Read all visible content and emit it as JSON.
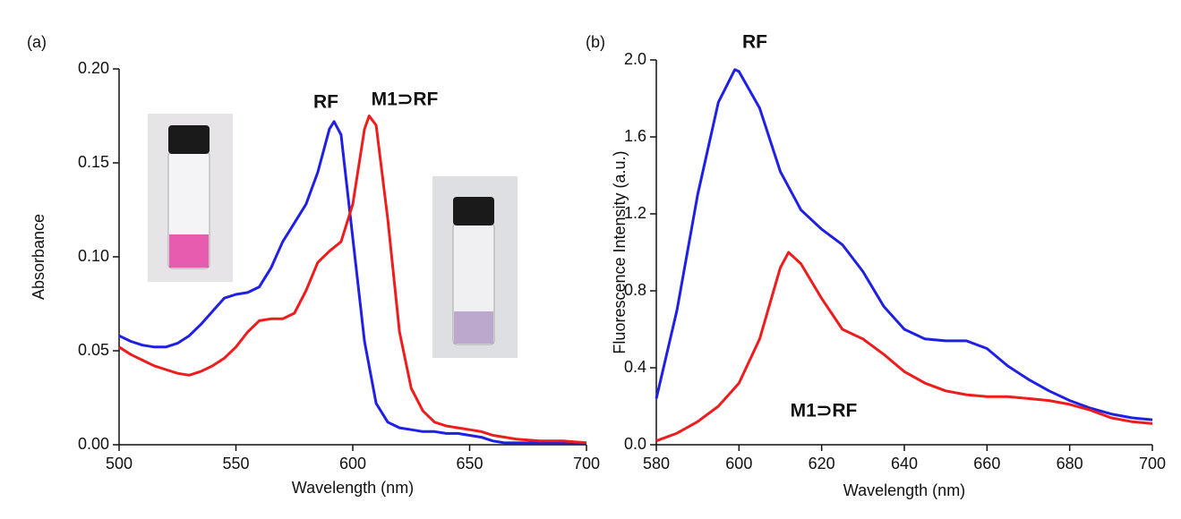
{
  "chart_data": [
    {
      "type": "line",
      "panel_label": "(a)",
      "x_label": "Wavelength (nm)",
      "y_label": "Absorbance",
      "annotations": [
        "RF",
        "M1⊃RF"
      ],
      "xlim": [
        500,
        700
      ],
      "xticks": [
        500,
        550,
        600,
        650,
        700
      ],
      "ylim": [
        0,
        0.2
      ],
      "yticks": [
        {
          "value": 0,
          "label": "0.00"
        },
        0.05,
        {
          "value": 0.1,
          "label": "0.10"
        },
        0.15,
        {
          "value": 0.2,
          "label": "0.20"
        }
      ],
      "series": [
        {
          "name": "RF",
          "color": "#1f1fe6",
          "x": [
            500,
            505,
            510,
            515,
            520,
            525,
            530,
            535,
            540,
            545,
            550,
            555,
            560,
            565,
            570,
            575,
            580,
            585,
            590,
            592,
            595,
            600,
            605,
            610,
            615,
            620,
            625,
            630,
            635,
            640,
            645,
            650,
            655,
            660,
            665,
            670,
            680,
            690,
            700
          ],
          "values": [
            0.058,
            0.055,
            0.053,
            0.052,
            0.052,
            0.054,
            0.058,
            0.064,
            0.071,
            0.078,
            0.08,
            0.081,
            0.084,
            0.094,
            0.108,
            0.118,
            0.128,
            0.145,
            0.168,
            0.172,
            0.165,
            0.11,
            0.055,
            0.022,
            0.012,
            0.009,
            0.008,
            0.007,
            0.007,
            0.006,
            0.006,
            0.005,
            0.004,
            0.002,
            0.001,
            0.001,
            0.001,
            0.001,
            0.001
          ]
        },
        {
          "name": "M1⊃RF",
          "color": "#ee1c1c",
          "x": [
            500,
            505,
            510,
            515,
            520,
            525,
            530,
            535,
            540,
            545,
            550,
            555,
            560,
            565,
            570,
            575,
            580,
            585,
            590,
            595,
            600,
            605,
            607,
            610,
            615,
            620,
            625,
            630,
            635,
            640,
            645,
            650,
            655,
            660,
            670,
            680,
            690,
            700
          ],
          "values": [
            0.052,
            0.048,
            0.045,
            0.042,
            0.04,
            0.038,
            0.037,
            0.039,
            0.042,
            0.046,
            0.052,
            0.06,
            0.066,
            0.067,
            0.067,
            0.07,
            0.082,
            0.097,
            0.103,
            0.108,
            0.128,
            0.168,
            0.175,
            0.17,
            0.12,
            0.06,
            0.03,
            0.018,
            0.012,
            0.01,
            0.009,
            0.008,
            0.007,
            0.005,
            0.003,
            0.002,
            0.002,
            0.001
          ]
        }
      ]
    },
    {
      "type": "line",
      "panel_label": "(b)",
      "x_label": "Wavelength (nm)",
      "y_label": "Fluorescence Intensity (a.u.)",
      "annotations": [
        "RF",
        "M1⊃RF"
      ],
      "xlim": [
        580,
        700
      ],
      "xticks": [
        580,
        600,
        620,
        640,
        660,
        680,
        700
      ],
      "ylim": [
        0,
        2
      ],
      "yticks": [
        {
          "value": 0,
          "label": "0.0"
        },
        0.4,
        0.8,
        1.2,
        1.6,
        {
          "value": 2,
          "label": "2.0"
        }
      ],
      "series": [
        {
          "name": "RF",
          "color": "#1f1fe6",
          "x": [
            580,
            585,
            590,
            595,
            599,
            600,
            605,
            610,
            615,
            620,
            625,
            630,
            635,
            640,
            645,
            650,
            655,
            660,
            665,
            670,
            675,
            680,
            685,
            690,
            695,
            700
          ],
          "values": [
            0.24,
            0.7,
            1.3,
            1.78,
            1.95,
            1.94,
            1.75,
            1.42,
            1.22,
            1.12,
            1.04,
            0.9,
            0.72,
            0.6,
            0.55,
            0.54,
            0.54,
            0.5,
            0.41,
            0.34,
            0.28,
            0.23,
            0.19,
            0.16,
            0.14,
            0.13
          ]
        },
        {
          "name": "M1⊃RF",
          "color": "#ee1c1c",
          "x": [
            580,
            585,
            590,
            595,
            600,
            605,
            610,
            612,
            615,
            620,
            625,
            630,
            635,
            640,
            645,
            650,
            655,
            660,
            665,
            670,
            675,
            680,
            685,
            690,
            695,
            700
          ],
          "values": [
            0.02,
            0.06,
            0.12,
            0.2,
            0.32,
            0.55,
            0.92,
            1.0,
            0.94,
            0.76,
            0.6,
            0.55,
            0.47,
            0.38,
            0.32,
            0.28,
            0.26,
            0.25,
            0.25,
            0.24,
            0.23,
            0.21,
            0.18,
            0.14,
            0.12,
            0.11
          ]
        }
      ]
    }
  ]
}
